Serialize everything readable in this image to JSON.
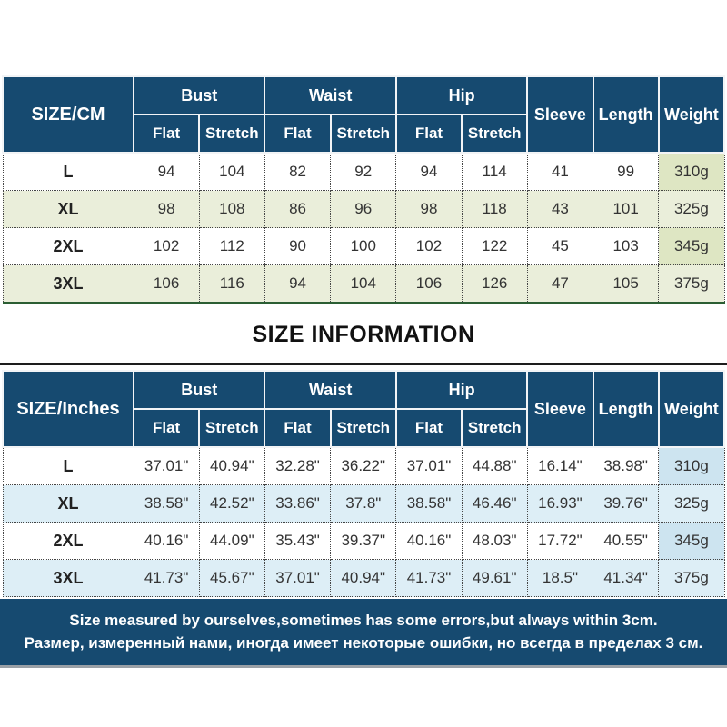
{
  "title": "SIZE INFORMATION",
  "colors": {
    "header_bg": "#164a70",
    "banner_bg": "#164a70",
    "cm_alt": "#eaeeda",
    "cm_weight": "#dee6c3",
    "cm_bottom": "#2b5e33",
    "inch_alt": "#ddeef6",
    "inch_weight": "#cde4f0",
    "text": "#333333"
  },
  "cm_table": {
    "corner_label": "SIZE/CM",
    "group_labels": [
      "Bust",
      "Waist",
      "Hip"
    ],
    "sub_labels": [
      "Flat",
      "Stretch",
      "Flat",
      "Stretch",
      "Flat",
      "Stretch"
    ],
    "single_labels": [
      "Sleeve",
      "Length",
      "Weight"
    ],
    "rows": [
      {
        "size": "L",
        "values": [
          "94",
          "104",
          "82",
          "92",
          "94",
          "114",
          "41",
          "99"
        ],
        "weight": "310g"
      },
      {
        "size": "XL",
        "values": [
          "98",
          "108",
          "86",
          "96",
          "98",
          "118",
          "43",
          "101"
        ],
        "weight": "325g"
      },
      {
        "size": "2XL",
        "values": [
          "102",
          "112",
          "90",
          "100",
          "102",
          "122",
          "45",
          "103"
        ],
        "weight": "345g"
      },
      {
        "size": "3XL",
        "values": [
          "106",
          "116",
          "94",
          "104",
          "106",
          "126",
          "47",
          "105"
        ],
        "weight": "375g"
      }
    ]
  },
  "inch_table": {
    "corner_label": "SIZE/Inches",
    "group_labels": [
      "Bust",
      "Waist",
      "Hip"
    ],
    "sub_labels": [
      "Flat",
      "Stretch",
      "Flat",
      "Stretch",
      "Flat",
      "Stretch"
    ],
    "single_labels": [
      "Sleeve",
      "Length",
      "Weight"
    ],
    "rows": [
      {
        "size": "L",
        "values": [
          "37.01\"",
          "40.94\"",
          "32.28\"",
          "36.22\"",
          "37.01\"",
          "44.88\"",
          "16.14\"",
          "38.98\""
        ],
        "weight": "310g"
      },
      {
        "size": "XL",
        "values": [
          "38.58\"",
          "42.52\"",
          "33.86\"",
          "37.8\"",
          "38.58\"",
          "46.46\"",
          "16.93\"",
          "39.76\""
        ],
        "weight": "325g"
      },
      {
        "size": "2XL",
        "values": [
          "40.16\"",
          "44.09\"",
          "35.43\"",
          "39.37\"",
          "40.16\"",
          "48.03\"",
          "17.72\"",
          "40.55\""
        ],
        "weight": "345g"
      },
      {
        "size": "3XL",
        "values": [
          "41.73\"",
          "45.67\"",
          "37.01\"",
          "40.94\"",
          "41.73\"",
          "49.61\"",
          "18.5\"",
          "41.34\""
        ],
        "weight": "375g"
      }
    ]
  },
  "note": {
    "line_en": "Size measured by ourselves,sometimes has some errors,but always within 3cm.",
    "line_ru": "Размер, измеренный нами, иногда имеет некоторые ошибки, но всегда в пределах 3 см."
  }
}
